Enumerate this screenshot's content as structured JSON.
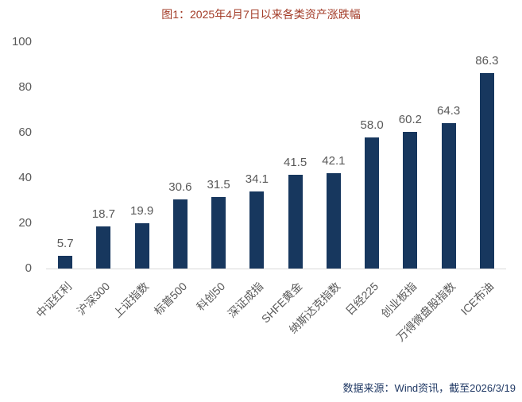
{
  "chart_data": {
    "type": "bar",
    "title": "图1：2025年4月7日以来各类资产涨跌幅",
    "categories": [
      "中证红利",
      "沪深300",
      "上证指数",
      "标普500",
      "科创50",
      "深证成指",
      "SHFE黄金",
      "纳斯达克指数",
      "日经225",
      "创业板指",
      "万得微盘股指数",
      "ICE布油"
    ],
    "values": [
      5.7,
      18.7,
      19.9,
      30.6,
      31.5,
      34.1,
      41.5,
      42.1,
      58.0,
      60.2,
      64.3,
      86.3
    ],
    "value_labels": [
      "5.7",
      "18.7",
      "19.9",
      "30.6",
      "31.5",
      "34.1",
      "41.5",
      "42.1",
      "58.0",
      "60.2",
      "64.3",
      "86.3"
    ],
    "xlabel": "",
    "ylabel": "",
    "ylim": [
      0,
      100
    ],
    "yticks": [
      0,
      20,
      40,
      60,
      80,
      100
    ],
    "grid": false,
    "legend": "none",
    "source_note": "数据来源：Wind资讯，截至2026/3/19"
  },
  "colors": {
    "bar": "#17375E",
    "title": "#A33C28",
    "tick_label": "#595959",
    "value_label": "#595959",
    "category_label": "#595959",
    "axis_line": "#D9D9D9",
    "source_note": "#1F3864",
    "background": "#FFFFFF"
  }
}
